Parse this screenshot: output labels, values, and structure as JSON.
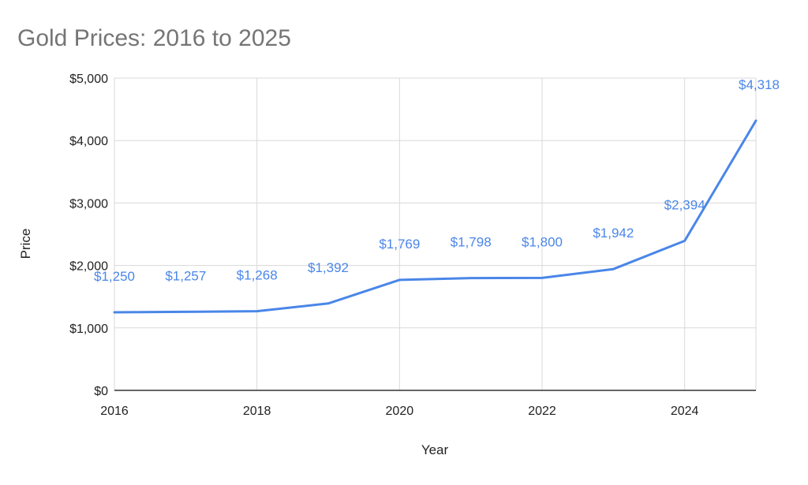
{
  "chart_data": {
    "type": "line",
    "title": "Gold Prices: 2016 to 2025",
    "xlabel": "Year",
    "ylabel": "Price",
    "x": [
      2016,
      2017,
      2018,
      2019,
      2020,
      2021,
      2022,
      2023,
      2024,
      2025
    ],
    "series": [
      {
        "values": [
          1250,
          1257,
          1268,
          1392,
          1769,
          1798,
          1800,
          1942,
          2394,
          4318
        ],
        "color": "#4a86e8"
      }
    ],
    "data_labels": [
      "$1,250",
      "$1,257",
      "$1,268",
      "$1,392",
      "$1,769",
      "$1,798",
      "$1,800",
      "$1,942",
      "$2,394",
      "$4,318"
    ],
    "xlim": [
      2016,
      2025
    ],
    "ylim": [
      0,
      5000
    ],
    "x_ticks": [
      2016,
      2018,
      2020,
      2022,
      2024
    ],
    "x_tick_labels": [
      "2016",
      "2018",
      "2020",
      "2022",
      "2024"
    ],
    "y_ticks": [
      0,
      1000,
      2000,
      3000,
      4000,
      5000
    ],
    "y_tick_labels": [
      "$0",
      "$1,000",
      "$2,000",
      "$3,000",
      "$4,000",
      "$5,000"
    ],
    "grid": true,
    "legend": "none"
  }
}
